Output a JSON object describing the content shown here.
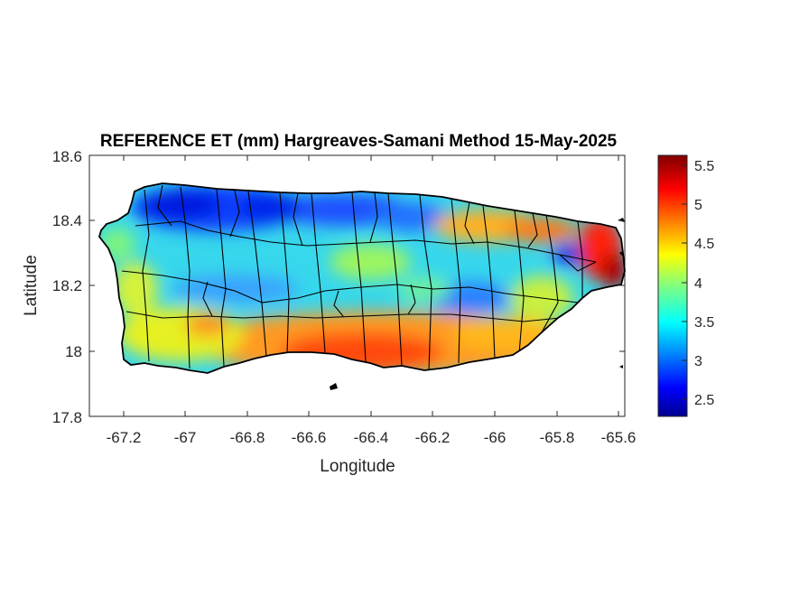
{
  "figure": {
    "title": "REFERENCE ET (mm) Hargreaves-Samani Method  15-May-2025",
    "xlabel": "Longitude",
    "ylabel": "Latitude"
  },
  "axes": {
    "x_ticks": [
      "-67.2",
      "-67",
      "-66.8",
      "-66.6",
      "-66.4",
      "-66.2",
      "-66",
      "-65.8",
      "-65.6"
    ],
    "y_ticks": [
      "18.6",
      "18.4",
      "18.2",
      "18"
    ],
    "y_tick_bottom": "17.8",
    "xlim": [
      -67.3,
      -65.6
    ],
    "ylim": [
      17.8,
      18.6
    ]
  },
  "colorbar": {
    "colormap": "jet",
    "range": [
      2.3,
      5.65
    ],
    "ticks": [
      "5.5",
      "5",
      "4.5",
      "4",
      "3.5",
      "3",
      "2.5"
    ],
    "colors": {
      "dark-blue": "#00008f",
      "blue": "#0000ff",
      "cyan": "#00ffff",
      "yellow": "#ffff00",
      "red": "#ff0000",
      "dark-red": "#800000"
    }
  },
  "map": {
    "region": "Puerto Rico",
    "variable": "reference evapotranspiration",
    "units": "mm",
    "pattern": {
      "north_coast": "low (2.5-3.5, blue)",
      "central_interior": "moderate (3.5-4, cyan)",
      "south_coast": "high (4.5-5.2, orange-red)",
      "east_coast": "highest (5-5.6, red)",
      "west": "moderate-high (4-4.5, yellow-green)"
    }
  }
}
